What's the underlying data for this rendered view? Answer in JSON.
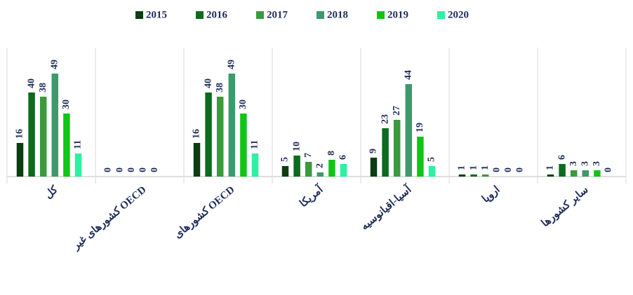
{
  "chart_data": {
    "type": "bar",
    "categories": [
      "کل",
      "کشورهای غیر OECD",
      "کشورهای OECD",
      "آمریکا",
      "آسیا-اقیانوسیه",
      "اروپا",
      "سایر کشورها"
    ],
    "series": [
      {
        "name": "2015",
        "color": "#0b3d12",
        "values": [
          16,
          0,
          16,
          5,
          9,
          1,
          1
        ]
      },
      {
        "name": "2016",
        "color": "#0e6a1e",
        "values": [
          40,
          0,
          40,
          10,
          23,
          1,
          6
        ]
      },
      {
        "name": "2017",
        "color": "#3a9a3c",
        "values": [
          38,
          0,
          38,
          7,
          27,
          1,
          3
        ]
      },
      {
        "name": "2018",
        "color": "#3c9a6c",
        "values": [
          49,
          0,
          49,
          2,
          44,
          0,
          3
        ]
      },
      {
        "name": "2019",
        "color": "#12c418",
        "values": [
          30,
          0,
          30,
          8,
          19,
          0,
          3
        ]
      },
      {
        "name": "2020",
        "color": "#2ef0a2",
        "values": [
          11,
          null,
          11,
          6,
          5,
          0,
          0
        ]
      }
    ],
    "legend": "top"
  }
}
